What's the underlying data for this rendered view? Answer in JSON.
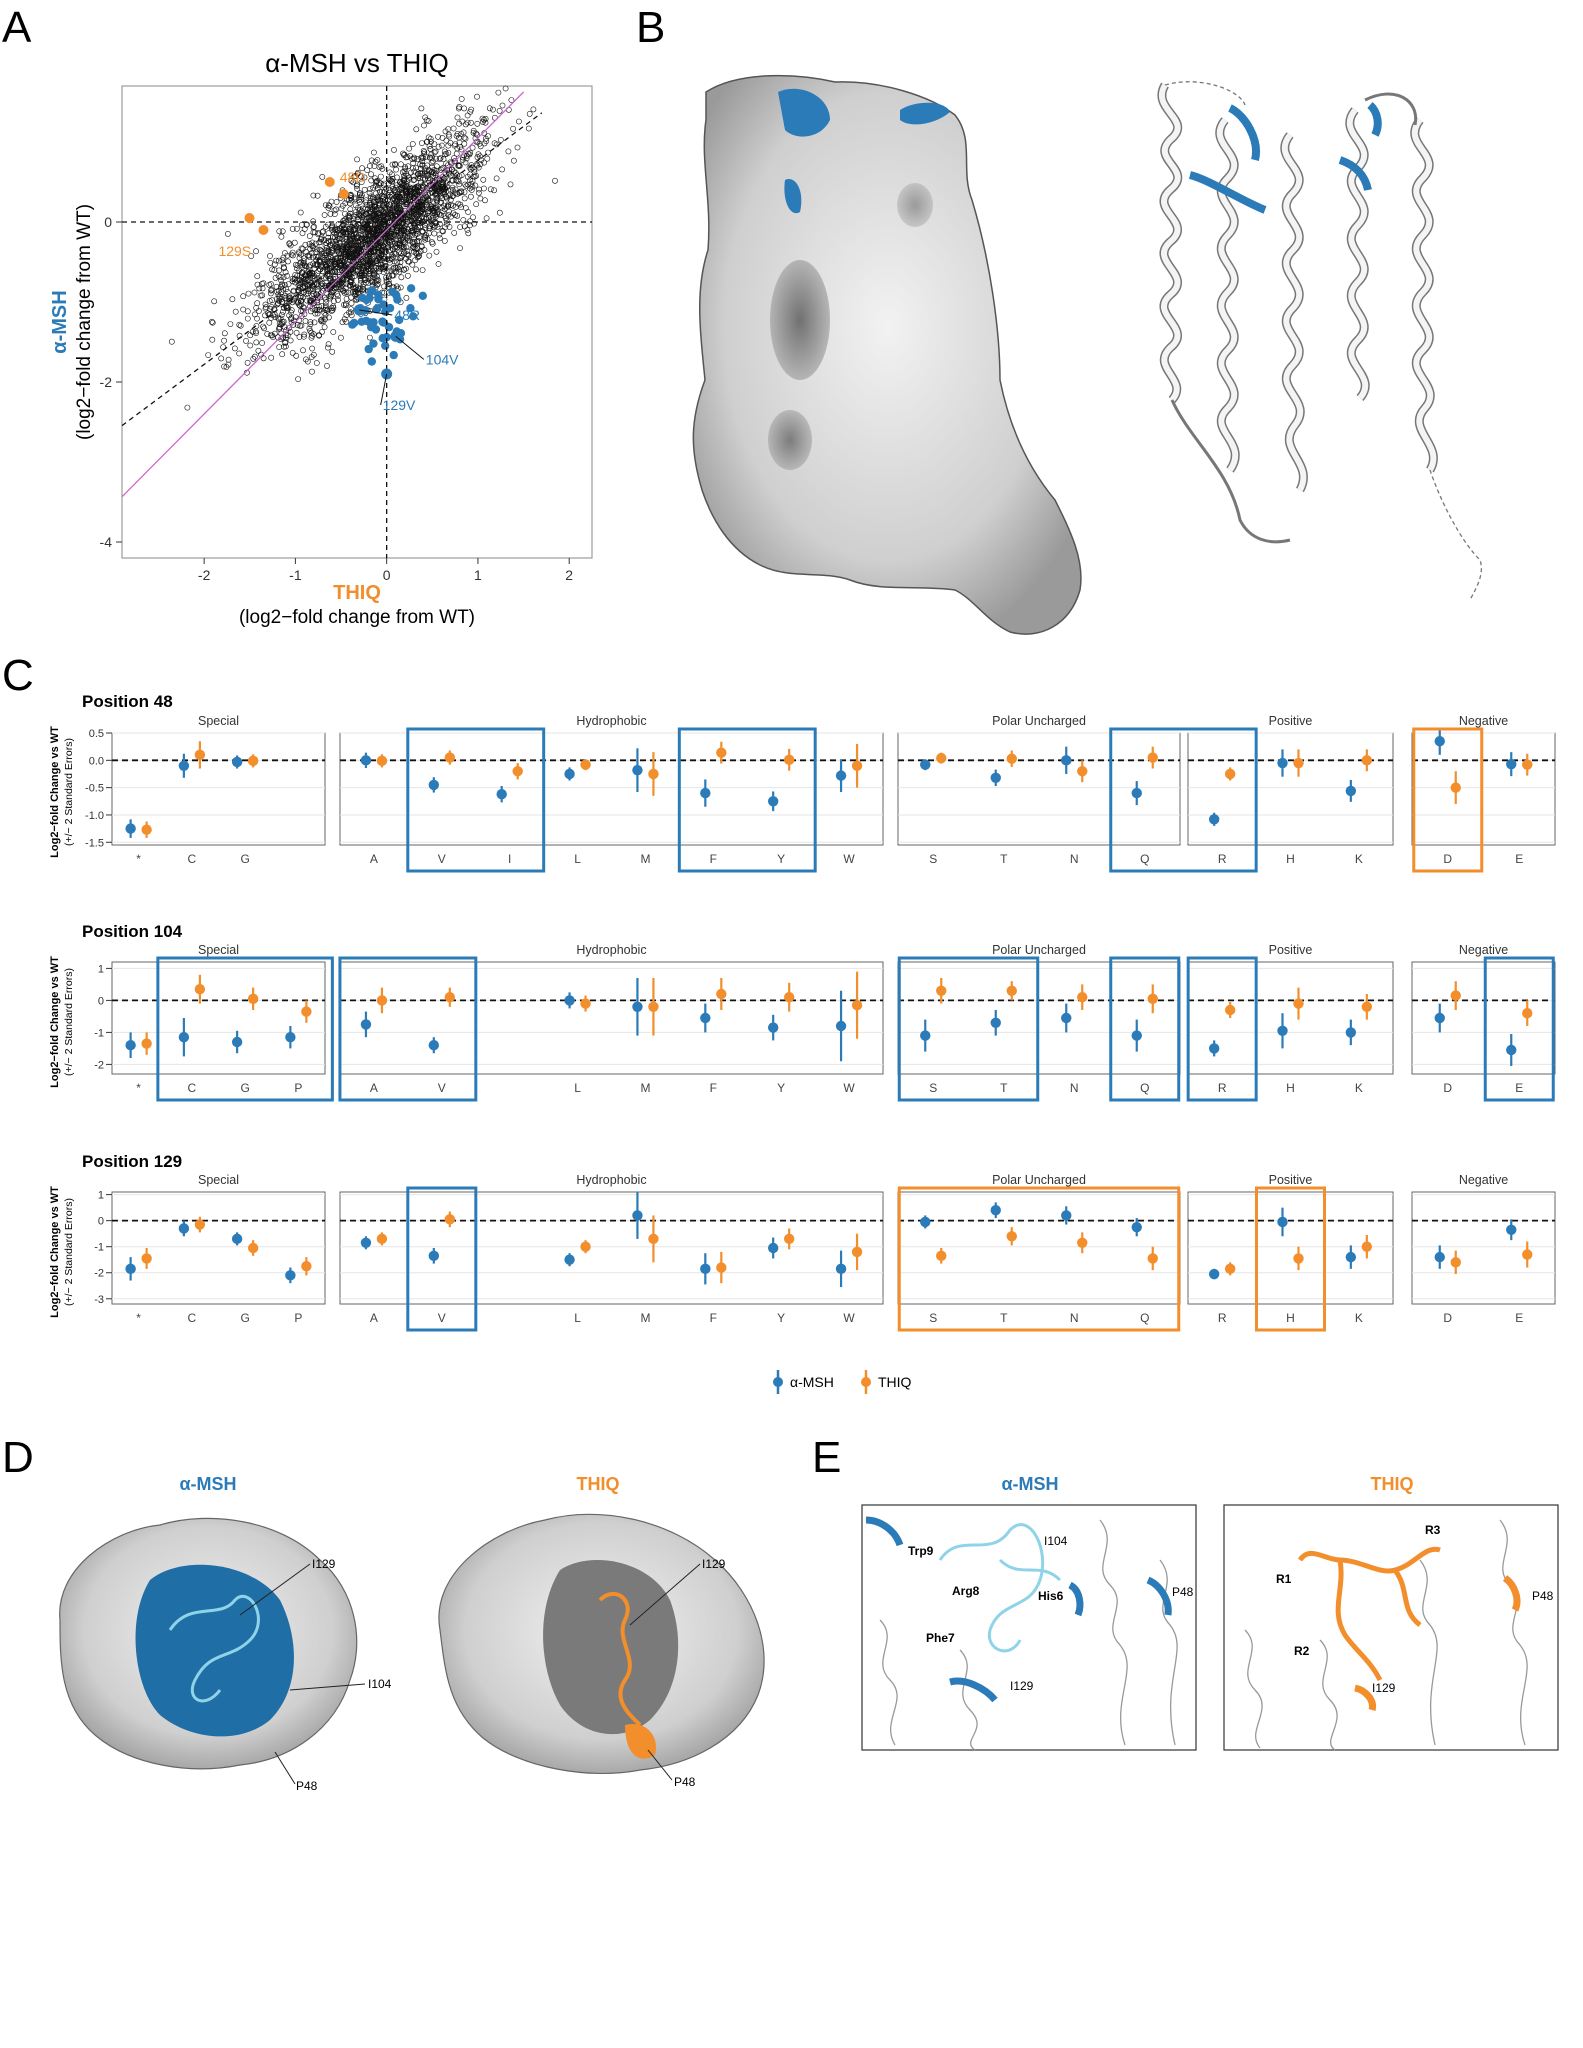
{
  "panel_letters": {
    "a": "A",
    "b": "B",
    "c": "C",
    "d": "D",
    "e": "E"
  },
  "colors": {
    "amsh": "#2b7bb9",
    "thiq": "#f28e2b",
    "amsh_light": "#8fd3e8",
    "grey_surface": "#d9d9d9",
    "pink_line": "#cc66cc"
  },
  "chart_data": [
    {
      "id": "panel-a",
      "type": "scatter",
      "title": "α-MSH vs THIQ",
      "xlabel": "THIQ",
      "xlabel_sub": "(log2−fold change from WT)",
      "ylabel": "α-MSH",
      "ylabel_sub": "(log2−fold change from WT)",
      "xlim": [
        -2.9,
        2.25
      ],
      "ylim": [
        -4.2,
        1.7
      ],
      "xticks": [
        -2,
        -1,
        0,
        1,
        2
      ],
      "yticks": [
        0,
        -2,
        -4
      ],
      "highlight_orange": [
        {
          "label": "48D",
          "x": -0.47,
          "y": 0.35
        },
        {
          "label": "129S",
          "x": -1.35,
          "y": -0.1
        }
      ],
      "highlight_blue": [
        {
          "label": "48R",
          "x": -0.3,
          "y": -1.1
        },
        {
          "label": "104V",
          "x": 0.1,
          "y": -1.43
        },
        {
          "label": "129V",
          "x": 0.0,
          "y": -1.9
        }
      ],
      "blue_cluster_center": [
        -0.05,
        -1.2
      ],
      "n_points_approx": 2500
    },
    {
      "id": "panel-c",
      "type": "scatter",
      "ylabel": "Log2−fold Change vs WT",
      "ylabel_sub": "(+/− 2 Standard Errors)",
      "legend": [
        "α-MSH",
        "THIQ"
      ],
      "groups": [
        "Special",
        "Hydrophobic",
        "Polar Uncharged",
        "Positive",
        "Negative"
      ],
      "residues": [
        "*",
        "C",
        "G",
        "P",
        "A",
        "V",
        "I",
        "L",
        "M",
        "F",
        "Y",
        "W",
        "S",
        "T",
        "N",
        "Q",
        "R",
        "H",
        "K",
        "D",
        "E"
      ],
      "positions": [
        {
          "title": "Position 48",
          "ylim": [
            -1.55,
            0.5
          ],
          "yticks": [
            0.5,
            0.0,
            -0.5,
            -1.0,
            -1.5
          ],
          "ytick_labels": [
            "0.5",
            "0.0",
            "-0.5",
            "-1.0",
            "-1.5"
          ],
          "data": [
            {
              "res": "*",
              "a": -1.25,
              "ae": 0.17,
              "t": -1.27,
              "te": 0.15
            },
            {
              "res": "C",
              "a": -0.1,
              "ae": 0.22,
              "t": 0.1,
              "te": 0.25
            },
            {
              "res": "G",
              "a": -0.03,
              "ae": 0.12,
              "t": -0.01,
              "te": 0.12
            },
            {
              "res": "A",
              "a": 0.0,
              "ae": 0.14,
              "t": -0.01,
              "te": 0.12
            },
            {
              "res": "V",
              "a": -0.45,
              "ae": 0.14,
              "t": 0.05,
              "te": 0.13
            },
            {
              "res": "I",
              "a": -0.62,
              "ae": 0.15,
              "t": -0.2,
              "te": 0.15
            },
            {
              "res": "L",
              "a": -0.25,
              "ae": 0.12,
              "t": -0.08,
              "te": 0.1
            },
            {
              "res": "M",
              "a": -0.18,
              "ae": 0.4,
              "t": -0.25,
              "te": 0.4
            },
            {
              "res": "F",
              "a": -0.6,
              "ae": 0.25,
              "t": 0.14,
              "te": 0.2
            },
            {
              "res": "Y",
              "a": -0.75,
              "ae": 0.18,
              "t": 0.01,
              "te": 0.2
            },
            {
              "res": "W",
              "a": -0.28,
              "ae": 0.3,
              "t": -0.1,
              "te": 0.4
            },
            {
              "res": "S",
              "a": -0.08,
              "ae": 0.1,
              "t": 0.04,
              "te": 0.1
            },
            {
              "res": "T",
              "a": -0.32,
              "ae": 0.15,
              "t": 0.03,
              "te": 0.15
            },
            {
              "res": "N",
              "a": 0.0,
              "ae": 0.25,
              "t": -0.2,
              "te": 0.2
            },
            {
              "res": "Q",
              "a": -0.6,
              "ae": 0.22,
              "t": 0.05,
              "te": 0.2
            },
            {
              "res": "R",
              "a": -1.08,
              "ae": 0.12,
              "t": -0.25,
              "te": 0.12
            },
            {
              "res": "H",
              "a": -0.05,
              "ae": 0.25,
              "t": -0.05,
              "te": 0.25
            },
            {
              "res": "K",
              "a": -0.56,
              "ae": 0.2,
              "t": 0.0,
              "te": 0.2
            },
            {
              "res": "D",
              "a": 0.35,
              "ae": 0.25,
              "t": -0.5,
              "te": 0.3
            },
            {
              "res": "E",
              "a": -0.07,
              "ae": 0.22,
              "t": -0.08,
              "te": 0.2
            }
          ],
          "boxes": [
            {
              "from": "V",
              "to": "I",
              "color": "blue"
            },
            {
              "from": "F",
              "to": "Y",
              "color": "blue"
            },
            {
              "from": "Q",
              "to": "R",
              "color": "blue"
            },
            {
              "from": "D",
              "to": "D",
              "color": "orange"
            }
          ]
        },
        {
          "title": "Position 104",
          "ylim": [
            -2.3,
            1.2
          ],
          "yticks": [
            1,
            0,
            -1,
            -2
          ],
          "ytick_labels": [
            "1",
            "0",
            "-1",
            "-2"
          ],
          "data": [
            {
              "res": "*",
              "a": -1.4,
              "ae": 0.4,
              "t": -1.35,
              "te": 0.35
            },
            {
              "res": "C",
              "a": -1.15,
              "ae": 0.6,
              "t": 0.35,
              "te": 0.45
            },
            {
              "res": "G",
              "a": -1.3,
              "ae": 0.35,
              "t": 0.05,
              "te": 0.35
            },
            {
              "res": "P",
              "a": -1.15,
              "ae": 0.35,
              "t": -0.35,
              "te": 0.35
            },
            {
              "res": "A",
              "a": -0.75,
              "ae": 0.4,
              "t": 0.0,
              "te": 0.4
            },
            {
              "res": "V",
              "a": -1.4,
              "ae": 0.25,
              "t": 0.1,
              "te": 0.3
            },
            {
              "res": "L",
              "a": 0.0,
              "ae": 0.25,
              "t": -0.1,
              "te": 0.25
            },
            {
              "res": "M",
              "a": -0.2,
              "ae": 0.9,
              "t": -0.2,
              "te": 0.9
            },
            {
              "res": "F",
              "a": -0.55,
              "ae": 0.45,
              "t": 0.2,
              "te": 0.5
            },
            {
              "res": "Y",
              "a": -0.85,
              "ae": 0.4,
              "t": 0.1,
              "te": 0.45
            },
            {
              "res": "W",
              "a": -0.8,
              "ae": 1.1,
              "t": -0.15,
              "te": 1.05
            },
            {
              "res": "S",
              "a": -1.1,
              "ae": 0.5,
              "t": 0.3,
              "te": 0.4
            },
            {
              "res": "T",
              "a": -0.7,
              "ae": 0.4,
              "t": 0.3,
              "te": 0.3
            },
            {
              "res": "N",
              "a": -0.55,
              "ae": 0.45,
              "t": 0.1,
              "te": 0.4
            },
            {
              "res": "Q",
              "a": -1.1,
              "ae": 0.5,
              "t": 0.05,
              "te": 0.45
            },
            {
              "res": "R",
              "a": -1.5,
              "ae": 0.25,
              "t": -0.3,
              "te": 0.25
            },
            {
              "res": "H",
              "a": -0.95,
              "ae": 0.55,
              "t": -0.1,
              "te": 0.5
            },
            {
              "res": "K",
              "a": -1.0,
              "ae": 0.4,
              "t": -0.2,
              "te": 0.4
            },
            {
              "res": "D",
              "a": -0.55,
              "ae": 0.45,
              "t": 0.15,
              "te": 0.45
            },
            {
              "res": "E",
              "a": -1.55,
              "ae": 0.5,
              "t": -0.4,
              "te": 0.4
            }
          ],
          "boxes": [
            {
              "from": "C",
              "to": "P",
              "color": "blue"
            },
            {
              "from": "A",
              "to": "V",
              "color": "blue"
            },
            {
              "from": "S",
              "to": "T",
              "color": "blue"
            },
            {
              "from": "Q",
              "to": "Q",
              "color": "blue"
            },
            {
              "from": "R",
              "to": "R",
              "color": "blue"
            },
            {
              "from": "E",
              "to": "E",
              "color": "blue"
            }
          ]
        },
        {
          "title": "Position 129",
          "ylim": [
            -3.2,
            1.1
          ],
          "yticks": [
            1,
            0,
            -1,
            -2,
            -3
          ],
          "ytick_labels": [
            "1",
            "0",
            "-1",
            "-2",
            "-3"
          ],
          "data": [
            {
              "res": "*",
              "a": -1.85,
              "ae": 0.45,
              "t": -1.45,
              "te": 0.4
            },
            {
              "res": "C",
              "a": -0.3,
              "ae": 0.3,
              "t": -0.15,
              "te": 0.3
            },
            {
              "res": "G",
              "a": -0.7,
              "ae": 0.25,
              "t": -1.05,
              "te": 0.3
            },
            {
              "res": "P",
              "a": -2.1,
              "ae": 0.3,
              "t": -1.75,
              "te": 0.35
            },
            {
              "res": "A",
              "a": -0.85,
              "ae": 0.25,
              "t": -0.7,
              "te": 0.25
            },
            {
              "res": "V",
              "a": -1.35,
              "ae": 0.3,
              "t": 0.05,
              "te": 0.3
            },
            {
              "res": "L",
              "a": -1.5,
              "ae": 0.25,
              "t": -1.0,
              "te": 0.25
            },
            {
              "res": "M",
              "a": 0.2,
              "ae": 0.9,
              "t": -0.7,
              "te": 0.9
            },
            {
              "res": "F",
              "a": -1.85,
              "ae": 0.6,
              "t": -1.8,
              "te": 0.6
            },
            {
              "res": "Y",
              "a": -1.05,
              "ae": 0.4,
              "t": -0.7,
              "te": 0.4
            },
            {
              "res": "W",
              "a": -1.85,
              "ae": 0.7,
              "t": -1.2,
              "te": 0.7
            },
            {
              "res": "S",
              "a": -0.05,
              "ae": 0.25,
              "t": -1.35,
              "te": 0.3
            },
            {
              "res": "T",
              "a": 0.4,
              "ae": 0.3,
              "t": -0.6,
              "te": 0.35
            },
            {
              "res": "N",
              "a": 0.2,
              "ae": 0.35,
              "t": -0.85,
              "te": 0.4
            },
            {
              "res": "Q",
              "a": -0.25,
              "ae": 0.35,
              "t": -1.45,
              "te": 0.45
            },
            {
              "res": "R",
              "a": -2.05,
              "ae": 0.2,
              "t": -1.85,
              "te": 0.25
            },
            {
              "res": "H",
              "a": -0.05,
              "ae": 0.55,
              "t": -1.45,
              "te": 0.45
            },
            {
              "res": "K",
              "a": -1.4,
              "ae": 0.45,
              "t": -1.0,
              "te": 0.45
            },
            {
              "res": "D",
              "a": -1.4,
              "ae": 0.45,
              "t": -1.6,
              "te": 0.45
            },
            {
              "res": "E",
              "a": -0.35,
              "ae": 0.4,
              "t": -1.3,
              "te": 0.5
            }
          ],
          "boxes": [
            {
              "from": "V",
              "to": "V",
              "color": "blue"
            },
            {
              "from": "S",
              "to": "Q",
              "color": "orange"
            },
            {
              "from": "H",
              "to": "H",
              "color": "orange"
            }
          ]
        }
      ]
    }
  ],
  "panel_d": {
    "left_title": "α-MSH",
    "right_title": "THIQ",
    "labels_left": [
      "I129",
      "I104",
      "P48"
    ],
    "labels_right": [
      "I129",
      "P48"
    ]
  },
  "panel_e": {
    "left_title": "α-MSH",
    "right_title": "THIQ",
    "labels_left": [
      "Trp9",
      "I104",
      "Arg8",
      "His6",
      "P48",
      "Phe7",
      "I129"
    ],
    "labels_right": [
      "R3",
      "R1",
      "P48",
      "R2",
      "I129"
    ]
  }
}
